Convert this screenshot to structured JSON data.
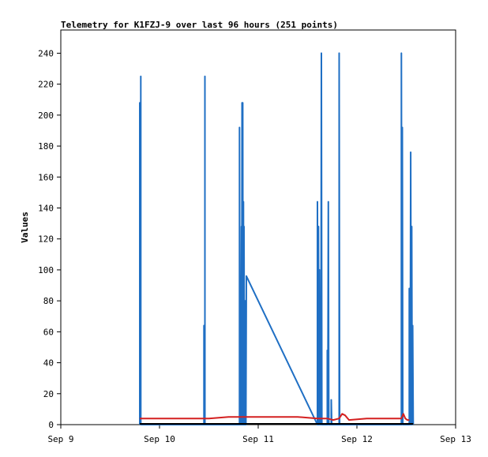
{
  "chart_data": {
    "type": "line",
    "title": "Telemetry for K1FZJ-9 over last 96 hours (251 points)",
    "xlabel": "",
    "ylabel": "Values",
    "x_ticks": [
      "Sep 9",
      "Sep 10",
      "Sep 11",
      "Sep 12",
      "Sep 13"
    ],
    "y_ticks": [
      0,
      20,
      40,
      60,
      80,
      100,
      120,
      140,
      160,
      180,
      200,
      220,
      240
    ],
    "xlim_days": [
      0,
      4
    ],
    "ylim": [
      0,
      255
    ],
    "grid": false,
    "legend": "none",
    "series": [
      {
        "color": "#1f6fc4",
        "points": [
          [
            0.8,
            0
          ],
          [
            0.8,
            208
          ],
          [
            0.81,
            0
          ],
          [
            0.81,
            225
          ],
          [
            0.81,
            0
          ],
          [
            1.45,
            0
          ],
          [
            1.45,
            64
          ],
          [
            1.46,
            0
          ],
          [
            1.46,
            225
          ],
          [
            1.46,
            0
          ],
          [
            1.81,
            0
          ],
          [
            1.81,
            192
          ],
          [
            1.815,
            0
          ],
          [
            1.82,
            96
          ],
          [
            1.825,
            0
          ],
          [
            1.83,
            128
          ],
          [
            1.833,
            0
          ],
          [
            1.836,
            208
          ],
          [
            1.84,
            0
          ],
          [
            1.843,
            208
          ],
          [
            1.846,
            0
          ],
          [
            1.85,
            144
          ],
          [
            1.853,
            0
          ],
          [
            1.856,
            128
          ],
          [
            1.86,
            0
          ],
          [
            1.863,
            64
          ],
          [
            1.866,
            0
          ],
          [
            1.87,
            80
          ],
          [
            1.875,
            0
          ],
          [
            1.88,
            96
          ],
          [
            2.6,
            0
          ],
          [
            2.6,
            144
          ],
          [
            2.605,
            0
          ],
          [
            2.61,
            128
          ],
          [
            2.615,
            0
          ],
          [
            2.62,
            100
          ],
          [
            2.625,
            0
          ],
          [
            2.63,
            72
          ],
          [
            2.635,
            0
          ],
          [
            2.64,
            240
          ],
          [
            2.645,
            0
          ],
          [
            2.7,
            0
          ],
          [
            2.7,
            48
          ],
          [
            2.705,
            0
          ],
          [
            2.71,
            144
          ],
          [
            2.715,
            0
          ],
          [
            2.74,
            0
          ],
          [
            2.74,
            16
          ],
          [
            2.745,
            0
          ],
          [
            2.82,
            0
          ],
          [
            2.82,
            240
          ],
          [
            2.825,
            0
          ],
          [
            3.45,
            0
          ],
          [
            3.45,
            240
          ],
          [
            3.455,
            0
          ],
          [
            3.46,
            192
          ],
          [
            3.465,
            0
          ],
          [
            3.47,
            0
          ],
          [
            3.53,
            0
          ],
          [
            3.53,
            88
          ],
          [
            3.535,
            16
          ],
          [
            3.54,
            0
          ],
          [
            3.545,
            176
          ],
          [
            3.55,
            0
          ],
          [
            3.555,
            128
          ],
          [
            3.56,
            0
          ],
          [
            3.565,
            64
          ],
          [
            3.57,
            0
          ]
        ]
      },
      {
        "color": "#d42020",
        "points": [
          [
            0.8,
            4
          ],
          [
            1.1,
            4
          ],
          [
            1.5,
            4
          ],
          [
            1.7,
            5
          ],
          [
            2.0,
            5
          ],
          [
            2.4,
            5
          ],
          [
            2.6,
            4
          ],
          [
            2.7,
            4
          ],
          [
            2.76,
            3
          ],
          [
            2.82,
            4
          ],
          [
            2.85,
            7
          ],
          [
            2.88,
            6
          ],
          [
            2.92,
            3
          ],
          [
            3.1,
            4
          ],
          [
            3.4,
            4
          ],
          [
            3.45,
            4
          ],
          [
            3.47,
            7
          ],
          [
            3.49,
            4
          ],
          [
            3.51,
            3
          ],
          [
            3.53,
            3
          ]
        ]
      },
      {
        "color": "#000000",
        "points": [
          [
            0.8,
            0.5
          ],
          [
            3.57,
            0.5
          ]
        ]
      }
    ]
  }
}
